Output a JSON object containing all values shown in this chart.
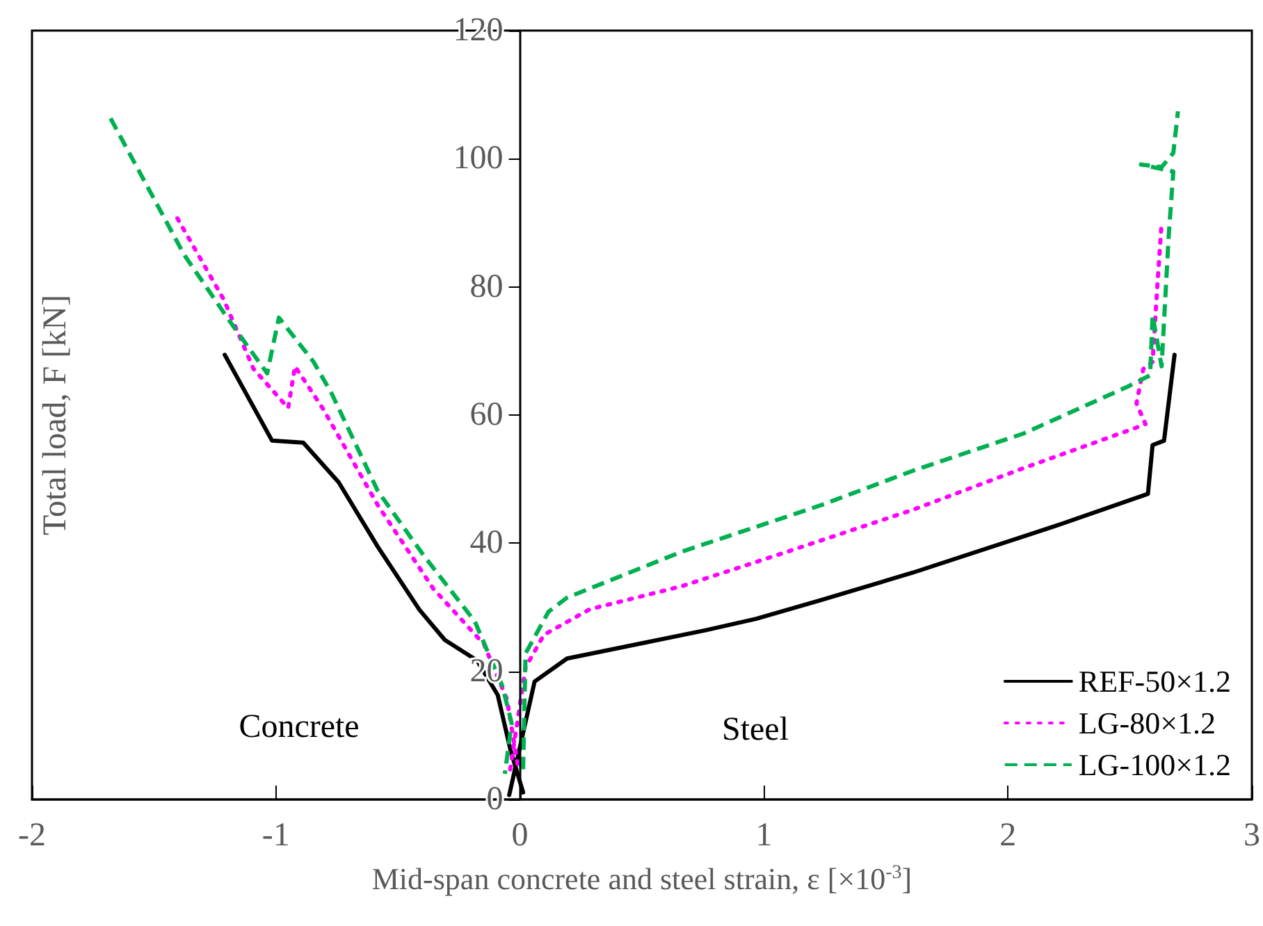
{
  "chart_data": {
    "type": "line",
    "xlabel": "Mid-span concrete and steel strain, ε [×10$^{-3}$]",
    "ylabel": "Total load, F [kN]",
    "xlim": [
      -2,
      3
    ],
    "xticks": [
      -2,
      -1,
      0,
      1,
      2,
      3
    ],
    "ylim": [
      0,
      120
    ],
    "yticks": [
      0,
      20,
      40,
      60,
      80,
      100,
      120
    ],
    "grid": false,
    "legend": "bottom right",
    "marker": "none",
    "annotations": [
      "Concrete",
      "Steel"
    ],
    "series": [
      {
        "name": "REF-50×1.2",
        "color": "#000000",
        "line_style": "solid",
        "x": [
          -1.21,
          -1.016,
          -0.888,
          -0.743,
          -0.582,
          -0.412,
          -0.308,
          -0.176,
          -0.091,
          -0.038,
          0.013,
          null,
          -0.044,
          0.06,
          0.193,
          0.476,
          0.76,
          0.968,
          1.232,
          1.61,
          2.196,
          2.574,
          2.593,
          2.64,
          2.683
        ],
        "values": [
          69.4,
          56.0,
          55.7,
          49.5,
          39.4,
          29.6,
          24.9,
          21.7,
          16.3,
          7.6,
          1.1,
          null,
          0.7,
          18.4,
          22.0,
          24.2,
          26.4,
          28.2,
          31.1,
          35.4,
          42.7,
          47.7,
          55.3,
          56.0,
          69.4
        ]
      },
      {
        "name": "LG-80×1.2",
        "color": "#ff00ff",
        "line_style": "dotted",
        "x": [
          -1.404,
          -1.215,
          -1.092,
          -0.95,
          -0.922,
          -0.809,
          -0.582,
          -0.355,
          -0.147,
          -0.053,
          -0.006,
          null,
          -0.04,
          0.023,
          0.098,
          0.287,
          0.665,
          1.043,
          1.61,
          2.063,
          2.517,
          2.564,
          2.527,
          2.555,
          2.593,
          2.612,
          2.63
        ],
        "values": [
          90.7,
          78.1,
          67.2,
          61.1,
          67.6,
          61.1,
          45.9,
          32.9,
          24.2,
          15.6,
          4.7,
          null,
          4.7,
          20.6,
          25.7,
          29.7,
          33.3,
          38.0,
          45.2,
          51.7,
          57.9,
          58.6,
          61.8,
          67.2,
          68.3,
          79.9,
          90.0
        ]
      },
      {
        "name": "LG-100×1.2",
        "color": "#00b050",
        "line_style": "dashed",
        "x": [
          -1.678,
          -1.376,
          -1.187,
          -1.036,
          -0.988,
          -0.846,
          -0.771,
          -0.582,
          -0.393,
          -0.185,
          -0.072,
          -0.034,
          -0.062,
          null,
          0.013,
          0.023,
          0.117,
          0.193,
          0.665,
          1.232,
          1.61,
          2.063,
          2.489,
          2.583,
          2.593,
          2.63,
          2.659,
          2.678,
          2.545,
          2.63,
          2.678,
          2.697
        ],
        "values": [
          106.3,
          85.0,
          74.5,
          66.5,
          75.2,
          68.3,
          63.3,
          48.1,
          38.0,
          27.8,
          17.7,
          11.9,
          4.0,
          null,
          4.7,
          22.8,
          29.3,
          31.5,
          38.7,
          45.9,
          51.3,
          57.1,
          64.4,
          66.2,
          75.6,
          67.6,
          87.9,
          98.0,
          99.1,
          98.7,
          100.9,
          107.4
        ]
      }
    ]
  }
}
